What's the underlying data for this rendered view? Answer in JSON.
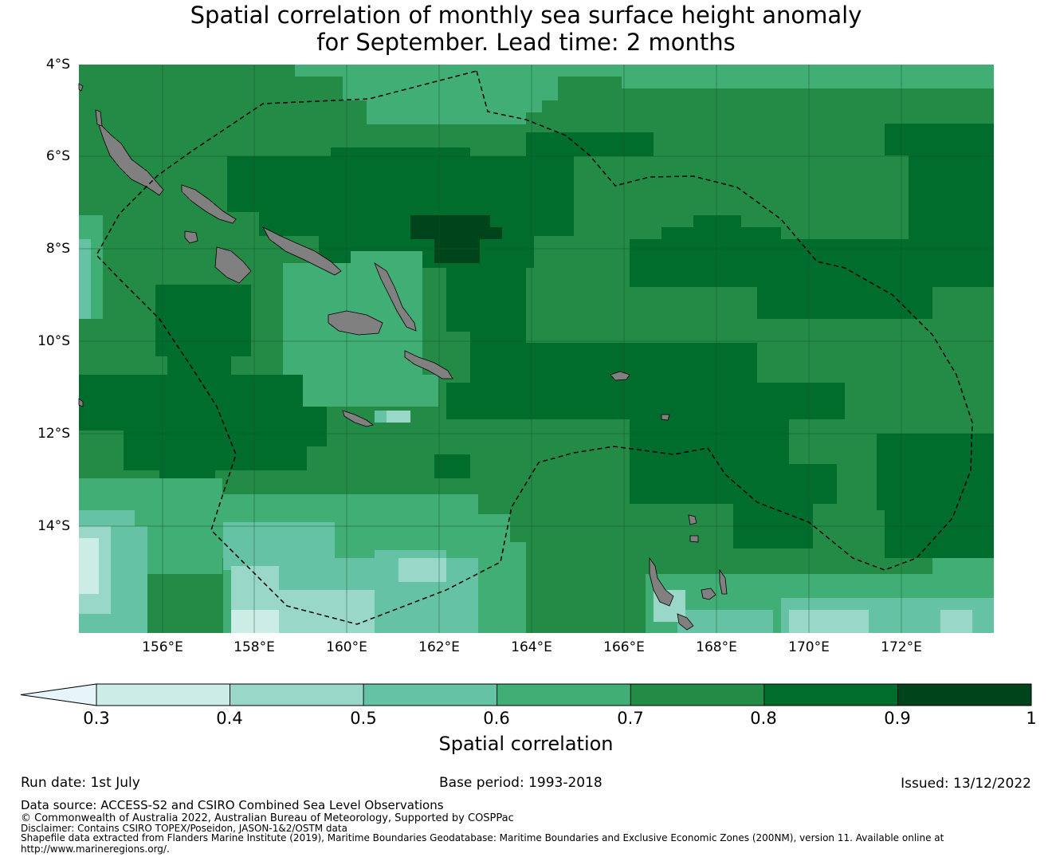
{
  "title": {
    "line1": "Spatial correlation of monthly sea surface height anomaly",
    "line2": "for September. Lead time: 2 months"
  },
  "map": {
    "lat_labels": [
      "4°S",
      "6°S",
      "8°S",
      "10°S",
      "12°S",
      "14°S"
    ],
    "lon_labels": [
      "156°E",
      "158°E",
      "160°E",
      "162°E",
      "164°E",
      "166°E",
      "168°E",
      "170°E",
      "172°E"
    ],
    "land_color": "#808080"
  },
  "colorbar": {
    "ticks": [
      "0.3",
      "0.4",
      "0.5",
      "0.6",
      "0.7",
      "0.8",
      "0.9",
      "1"
    ],
    "colors": [
      "#ccece6",
      "#99d8c9",
      "#66c2a4",
      "#41ae76",
      "#238b45",
      "#006d2c",
      "#00441b"
    ],
    "extend_color": "#e5f5f9",
    "label": "Spatial correlation"
  },
  "footer": {
    "run_date": "Run date: 1st July",
    "base_period": "Base period: 1993-2018",
    "issued": "Issued: 13/12/2022",
    "data_source": "Data source: ACCESS-S2 and CSIRO Combined Sea Level Observations",
    "copyright": "© Commonwealth of Australia 2022, Australian Bureau of Meteorology, Supported by COSPPac",
    "disclaimer": "Disclaimer: Contains CSIRO TOPEX/Poseidon, JASON-1&2/OSTM data",
    "shapefile": "Shapefile data extracted from Flanders Marine Institute (2019), Maritime Boundaries Geodatabase: Maritime Boundaries and Exclusive Economic Zones (200NM), version 11. Available online at",
    "url": "http://www.marineregions.org/."
  }
}
